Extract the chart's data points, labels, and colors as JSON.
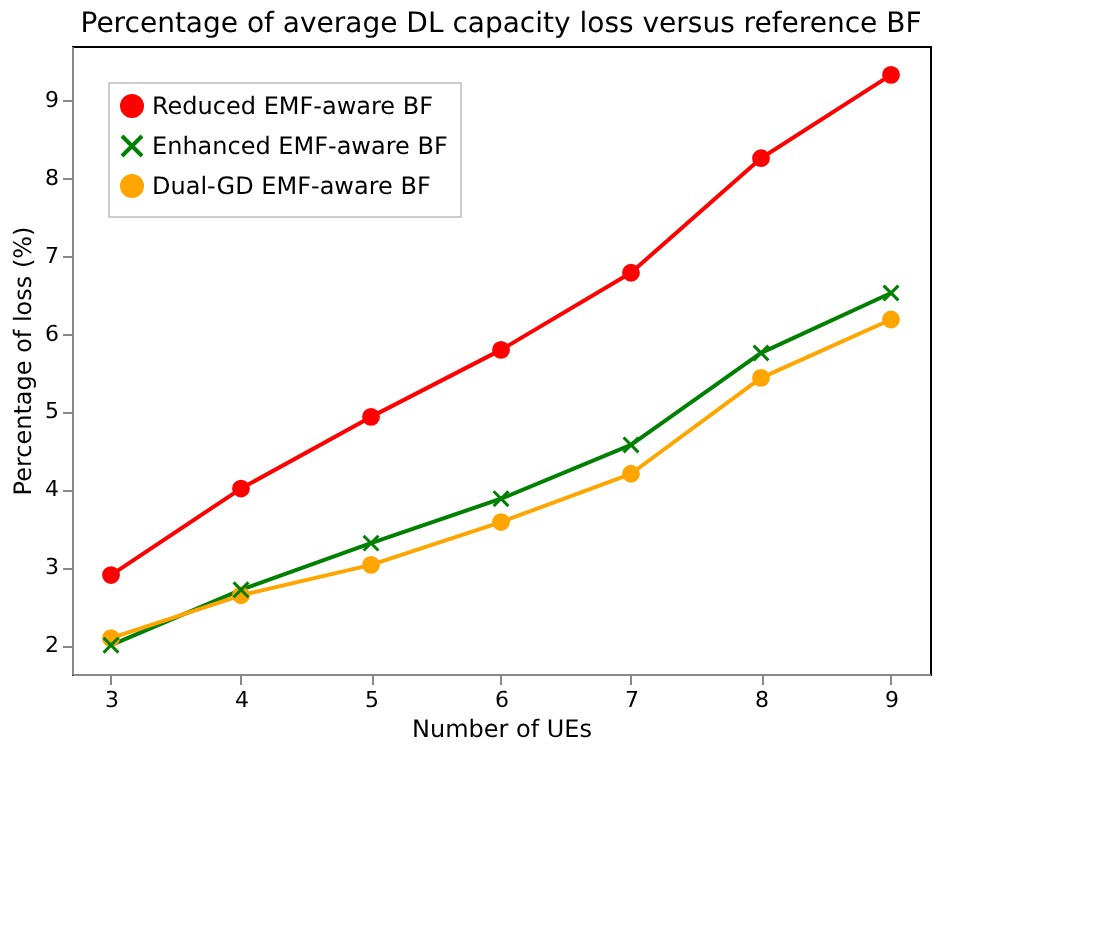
{
  "chart_data": {
    "type": "line",
    "title": "Percentage of average DL capacity loss versus reference BF",
    "xlabel": "Number of UEs",
    "ylabel": "Percentage of loss (%)",
    "x": [
      3,
      4,
      5,
      6,
      7,
      8,
      9
    ],
    "series": [
      {
        "name": "Reduced EMF-aware BF",
        "color": "#ff0000",
        "marker": "circle",
        "values": [
          2.9,
          4.01,
          4.93,
          5.79,
          6.78,
          8.25,
          9.32
        ]
      },
      {
        "name": "Enhanced EMF-aware BF",
        "color": "#008000",
        "marker": "cross",
        "values": [
          2.0,
          2.71,
          3.31,
          3.88,
          4.57,
          5.75,
          6.52
        ]
      },
      {
        "name": "Dual-GD EMF-aware BF",
        "color": "#ffa500",
        "marker": "circle",
        "values": [
          2.09,
          2.64,
          3.03,
          3.58,
          4.2,
          5.43,
          6.18
        ]
      }
    ],
    "xlim": [
      2.7,
      9.3
    ],
    "ylim": [
      1.63,
      9.69
    ],
    "xticks": [
      3,
      4,
      5,
      6,
      7,
      8,
      9
    ],
    "yticks": [
      2,
      3,
      4,
      5,
      6,
      7,
      8,
      9
    ],
    "legend": "top left",
    "grid": false,
    "line_style": "solid"
  }
}
